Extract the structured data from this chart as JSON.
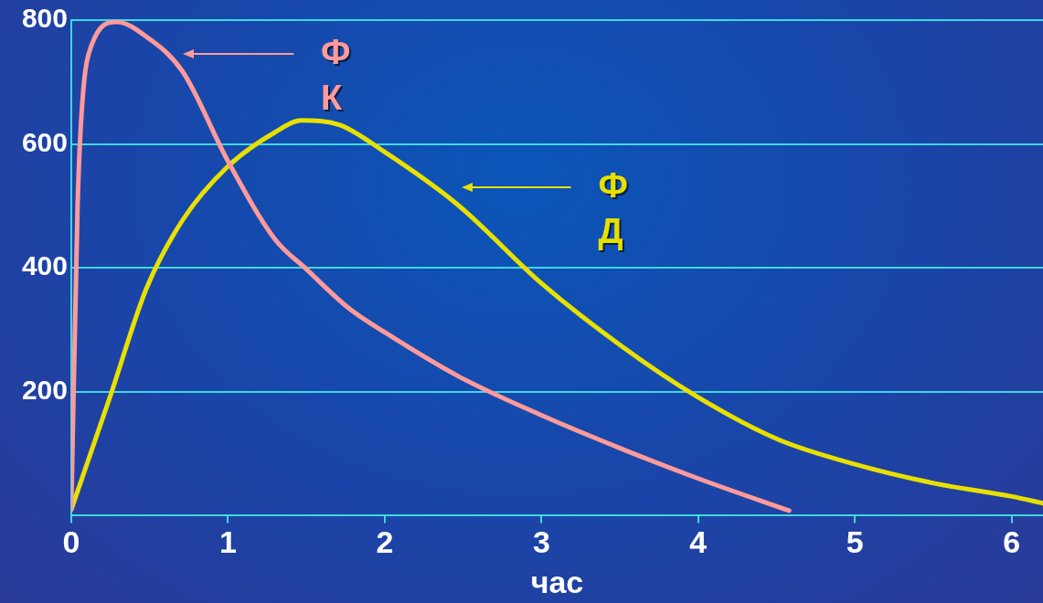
{
  "chart_data": {
    "type": "line",
    "xlabel": "час",
    "xlim": [
      0,
      6.2
    ],
    "xticks": [
      0,
      1,
      2,
      3,
      4,
      5,
      6
    ],
    "ylim": [
      0,
      800
    ],
    "yticks": [
      200,
      400,
      600,
      800
    ],
    "grid": "y",
    "legend": "top left",
    "marker": "none",
    "line_style": "solid",
    "series": [
      {
        "name": "ФК",
        "color": "#ff9a9a",
        "x": [
          0,
          0.04,
          0.07,
          0.13,
          0.29,
          0.48,
          0.71,
          1.0,
          1.3,
          1.5,
          1.77,
          2.0,
          2.47,
          3.0,
          3.52,
          4.0,
          4.58
        ],
        "values": [
          10,
          500,
          666,
          760,
          797,
          773,
          717,
          572,
          446,
          398,
          335,
          296,
          225,
          162,
          107,
          60,
          8
        ]
      },
      {
        "name": "ФД",
        "color": "#e8e000",
        "x": [
          0,
          0.25,
          0.48,
          0.71,
          1.0,
          1.3,
          1.47,
          1.71,
          2.0,
          2.47,
          3.0,
          3.52,
          4.0,
          4.51,
          5.0,
          5.51,
          6.0,
          6.2
        ],
        "values": [
          10,
          194,
          367,
          477,
          564,
          619,
          638,
          631,
          587,
          501,
          375,
          272,
          191,
          123,
          83,
          52,
          31,
          20
        ]
      }
    ]
  }
}
